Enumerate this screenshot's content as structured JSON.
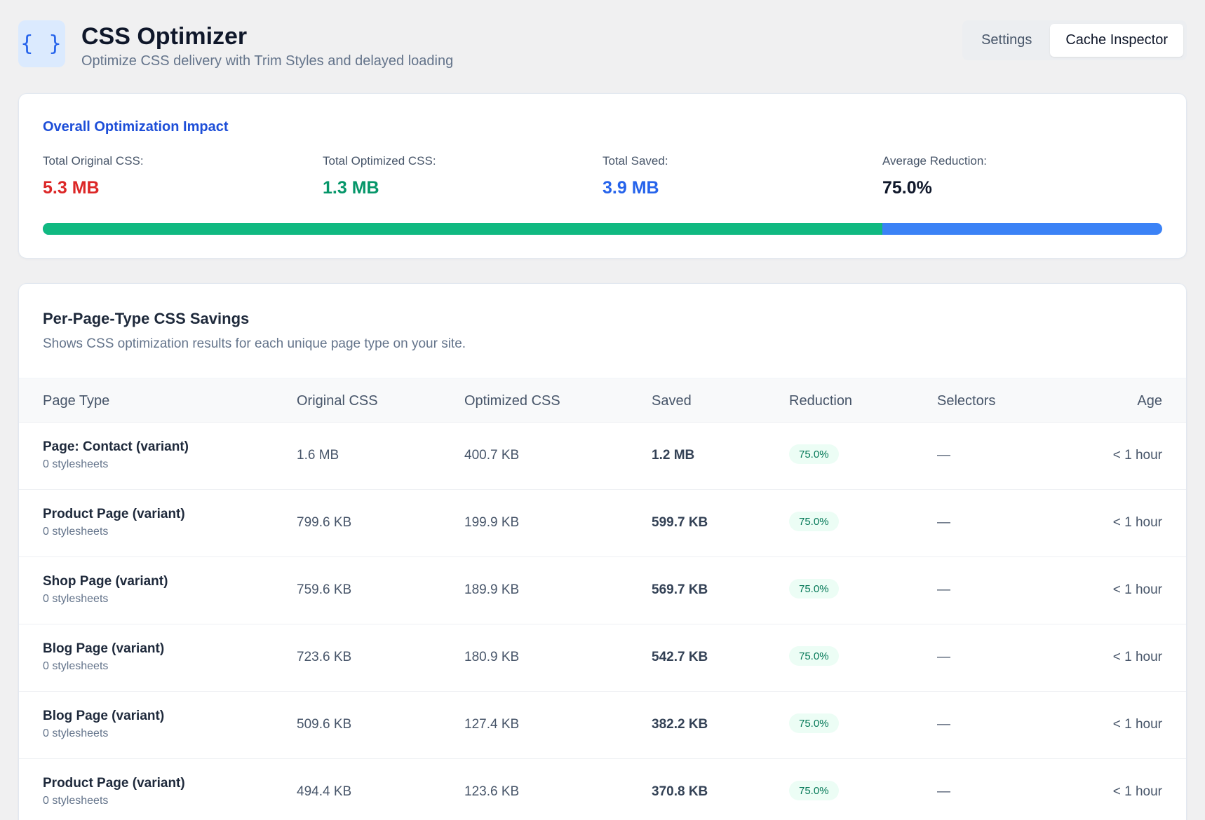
{
  "header": {
    "icon": "curly-braces-icon",
    "icon_glyph": "{ }",
    "title": "CSS Optimizer",
    "subtitle": "Optimize CSS delivery with Trim Styles and delayed loading",
    "tabs": [
      {
        "label": "Settings",
        "active": false
      },
      {
        "label": "Cache Inspector",
        "active": true
      }
    ]
  },
  "summary": {
    "title": "Overall Optimization Impact",
    "stats": [
      {
        "label": "Total Original CSS:",
        "value": "5.3 MB",
        "color": "#dc2626"
      },
      {
        "label": "Total Optimized CSS:",
        "value": "1.3 MB",
        "color": "#059669"
      },
      {
        "label": "Total Saved:",
        "value": "3.9 MB",
        "color": "#2563eb"
      },
      {
        "label": "Average Reduction:",
        "value": "75.0%",
        "color": "#0f172a"
      }
    ],
    "progress_fraction": 0.75,
    "colors": {
      "optimized": "#10b981",
      "saved": "#3b82f6"
    }
  },
  "table": {
    "title": "Per-Page-Type CSS Savings",
    "description": "Shows CSS optimization results for each unique page type on your site.",
    "columns": [
      "Page Type",
      "Original CSS",
      "Optimized CSS",
      "Saved",
      "Reduction",
      "Selectors",
      "Age"
    ],
    "rows": [
      {
        "page_type": "Page: Contact (variant)",
        "stylesheets": "0 stylesheets",
        "original": "1.6 MB",
        "optimized": "400.7 KB",
        "saved": "1.2 MB",
        "reduction": "75.0%",
        "selectors": "—",
        "age": "< 1 hour"
      },
      {
        "page_type": "Product Page (variant)",
        "stylesheets": "0 stylesheets",
        "original": "799.6 KB",
        "optimized": "199.9 KB",
        "saved": "599.7 KB",
        "reduction": "75.0%",
        "selectors": "—",
        "age": "< 1 hour"
      },
      {
        "page_type": "Shop Page (variant)",
        "stylesheets": "0 stylesheets",
        "original": "759.6 KB",
        "optimized": "189.9 KB",
        "saved": "569.7 KB",
        "reduction": "75.0%",
        "selectors": "—",
        "age": "< 1 hour"
      },
      {
        "page_type": "Blog Page (variant)",
        "stylesheets": "0 stylesheets",
        "original": "723.6 KB",
        "optimized": "180.9 KB",
        "saved": "542.7 KB",
        "reduction": "75.0%",
        "selectors": "—",
        "age": "< 1 hour"
      },
      {
        "page_type": "Blog Page (variant)",
        "stylesheets": "0 stylesheets",
        "original": "509.6 KB",
        "optimized": "127.4 KB",
        "saved": "382.2 KB",
        "reduction": "75.0%",
        "selectors": "—",
        "age": "< 1 hour"
      },
      {
        "page_type": "Product Page (variant)",
        "stylesheets": "0 stylesheets",
        "original": "494.4 KB",
        "optimized": "123.6 KB",
        "saved": "370.8 KB",
        "reduction": "75.0%",
        "selectors": "—",
        "age": "< 1 hour"
      }
    ]
  }
}
